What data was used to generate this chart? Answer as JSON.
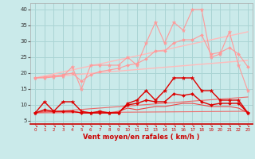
{
  "xlabel": "Vent moyen/en rafales ( km/h )",
  "xlim": [
    -0.5,
    23.5
  ],
  "ylim": [
    4,
    42
  ],
  "yticks": [
    5,
    10,
    15,
    20,
    25,
    30,
    35,
    40
  ],
  "xticks": [
    0,
    1,
    2,
    3,
    4,
    5,
    6,
    7,
    8,
    9,
    10,
    11,
    12,
    13,
    14,
    15,
    16,
    17,
    18,
    19,
    20,
    21,
    22,
    23
  ],
  "bg_color": "#caeaea",
  "grid_color": "#aad4d4",
  "series": [
    {
      "x": [
        0,
        1,
        2,
        3,
        4,
        5,
        6,
        7,
        8,
        9,
        10,
        11,
        12,
        13,
        14,
        15,
        16,
        17,
        18,
        19,
        20,
        21,
        22,
        23
      ],
      "y": [
        18.5,
        18.5,
        18.8,
        19.0,
        22.0,
        15.0,
        22.5,
        22.5,
        22.5,
        22.5,
        25.0,
        22.5,
        29.5,
        36.0,
        29.5,
        36.0,
        33.5,
        40.0,
        40.0,
        25.0,
        26.0,
        33.0,
        22.5,
        14.5
      ],
      "color": "#ff9999",
      "marker": "*",
      "lw": 0.8,
      "ms": 3.5,
      "zorder": 3
    },
    {
      "x": [
        0,
        1,
        2,
        3,
        4,
        5,
        6,
        7,
        8,
        9,
        10,
        11,
        12,
        13,
        14,
        15,
        16,
        17,
        18,
        19,
        20,
        21,
        22,
        23
      ],
      "y": [
        18.5,
        18.8,
        19.2,
        19.5,
        20.0,
        17.5,
        19.5,
        20.5,
        21.0,
        21.5,
        22.5,
        23.0,
        24.5,
        27.0,
        27.0,
        29.5,
        30.5,
        30.5,
        32.0,
        26.0,
        26.5,
        28.0,
        26.0,
        22.0
      ],
      "color": "#ff9999",
      "marker": "D",
      "lw": 0.8,
      "ms": 2.0,
      "zorder": 3
    },
    {
      "x": [
        0,
        23
      ],
      "y": [
        18.5,
        33.0
      ],
      "color": "#ffbbbb",
      "marker": "",
      "lw": 1.0,
      "ms": 0,
      "zorder": 2
    },
    {
      "x": [
        0,
        23
      ],
      "y": [
        18.5,
        24.0
      ],
      "color": "#ffbbbb",
      "marker": "",
      "lw": 1.0,
      "ms": 0,
      "zorder": 2
    },
    {
      "x": [
        0,
        1,
        2,
        3,
        4,
        5,
        6,
        7,
        8,
        9,
        10,
        11,
        12,
        13,
        14,
        15,
        16,
        17,
        18,
        19,
        20,
        21,
        22,
        23
      ],
      "y": [
        7.5,
        11.0,
        8.0,
        11.0,
        11.0,
        8.0,
        7.5,
        8.0,
        7.5,
        7.5,
        10.5,
        11.5,
        14.5,
        11.5,
        14.5,
        18.5,
        18.5,
        18.5,
        14.5,
        14.5,
        11.5,
        11.5,
        11.5,
        7.5
      ],
      "color": "#dd0000",
      "marker": "*",
      "lw": 1.0,
      "ms": 3.5,
      "zorder": 4
    },
    {
      "x": [
        0,
        1,
        2,
        3,
        4,
        5,
        6,
        7,
        8,
        9,
        10,
        11,
        12,
        13,
        14,
        15,
        16,
        17,
        18,
        19,
        20,
        21,
        22,
        23
      ],
      "y": [
        7.5,
        8.5,
        8.0,
        8.0,
        8.0,
        7.5,
        7.5,
        7.5,
        7.5,
        7.5,
        10.0,
        10.5,
        11.5,
        11.0,
        11.0,
        13.5,
        13.0,
        13.5,
        11.0,
        10.0,
        10.5,
        10.5,
        10.5,
        7.5
      ],
      "color": "#dd0000",
      "marker": "D",
      "lw": 1.0,
      "ms": 2.0,
      "zorder": 4
    },
    {
      "x": [
        0,
        1,
        2,
        3,
        4,
        5,
        6,
        7,
        8,
        9,
        10,
        11,
        12,
        13,
        14,
        15,
        16,
        17,
        18,
        19,
        20,
        21,
        22,
        23
      ],
      "y": [
        7.5,
        8.0,
        7.8,
        8.0,
        8.0,
        7.5,
        7.5,
        7.5,
        7.5,
        8.0,
        9.0,
        8.5,
        9.0,
        9.5,
        9.5,
        10.0,
        10.5,
        10.5,
        10.0,
        9.5,
        9.5,
        9.5,
        9.0,
        7.5
      ],
      "color": "#ee4444",
      "marker": "",
      "lw": 0.8,
      "ms": 0,
      "zorder": 3
    },
    {
      "x": [
        0,
        23
      ],
      "y": [
        7.5,
        12.5
      ],
      "color": "#ee6666",
      "marker": "",
      "lw": 0.8,
      "ms": 0,
      "zorder": 2
    },
    {
      "x": [
        0,
        23
      ],
      "y": [
        7.5,
        8.0
      ],
      "color": "#ee6666",
      "marker": "",
      "lw": 0.8,
      "ms": 0,
      "zorder": 2
    }
  ]
}
